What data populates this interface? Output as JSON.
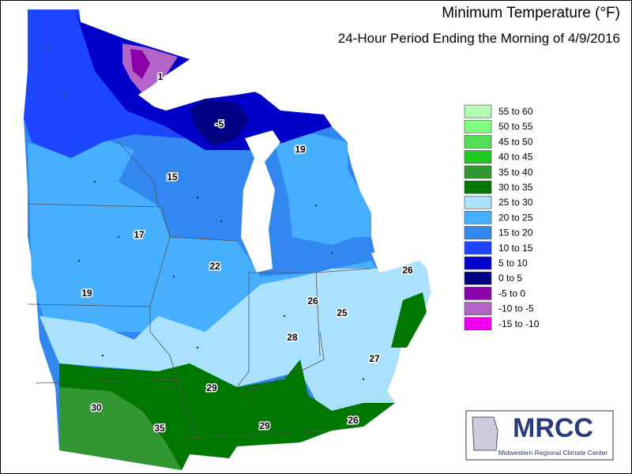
{
  "header": {
    "title": "Minimum Temperature (°F)",
    "subtitle": "24-Hour Period Ending the Morning of 4/9/2016"
  },
  "legend": {
    "items": [
      {
        "label": "55 to 60",
        "color": "#b4ffb4"
      },
      {
        "label": "50 to 55",
        "color": "#80ff80"
      },
      {
        "label": "45 to 50",
        "color": "#55dd55"
      },
      {
        "label": "40 to 45",
        "color": "#1ec81e"
      },
      {
        "label": "35 to 40",
        "color": "#329632"
      },
      {
        "label": "30 to 35",
        "color": "#007800"
      },
      {
        "label": "25 to 30",
        "color": "#aae1ff"
      },
      {
        "label": "20 to 25",
        "color": "#46afff"
      },
      {
        "label": "15 to 20",
        "color": "#3287f0"
      },
      {
        "label": "10 to 15",
        "color": "#1e46ff"
      },
      {
        "label": "5 to 10",
        "color": "#0000c8"
      },
      {
        "label": "0 to 5",
        "color": "#000082"
      },
      {
        "label": "-5 to 0",
        "color": "#8c00aa"
      },
      {
        "label": "-10 to -5",
        "color": "#b464c8"
      },
      {
        "label": "-15 to -10",
        "color": "#f000f0"
      }
    ]
  },
  "map_labels": [
    1,
    -5,
    19,
    15,
    17,
    22,
    19,
    26,
    26,
    25,
    28,
    27,
    29,
    30,
    35,
    29,
    26
  ],
  "logo": {
    "name": "MRCC",
    "full_name": "Midwestern Regional Climate Center"
  }
}
